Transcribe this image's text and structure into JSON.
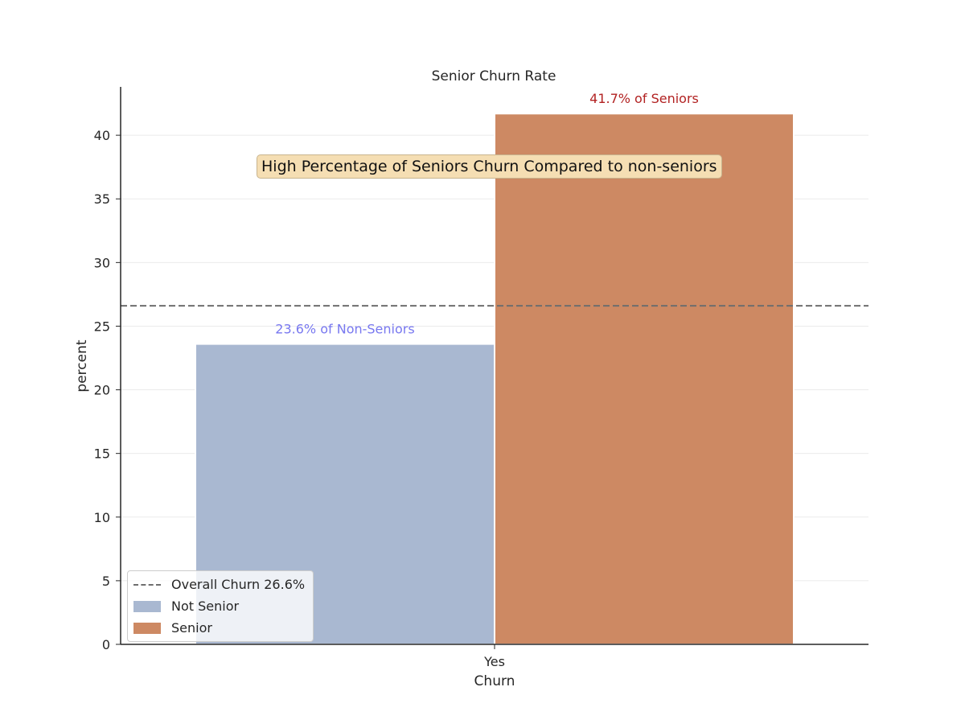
{
  "chart_data": {
    "type": "bar",
    "title": "Senior Churn Rate",
    "xlabel": "Churn",
    "ylabel": "percent",
    "categories": [
      "Yes"
    ],
    "ylim": [
      0,
      43.8
    ],
    "yticks": [
      0,
      5,
      10,
      15,
      20,
      25,
      30,
      35,
      40
    ],
    "grid": "horizontal",
    "legend_position": "lower-left",
    "series": [
      {
        "name": "Not Senior",
        "values": [
          23.6
        ],
        "color": "#a9b8d1",
        "data_label": "23.6% of Non-Seniors",
        "label_color": "#7878f0"
      },
      {
        "name": "Senior",
        "values": [
          41.7
        ],
        "color": "#cd8963",
        "data_label": "41.7% of Seniors",
        "label_color": "#b22222"
      }
    ],
    "reference_line": {
      "label": "Overall Churn 26.6%",
      "value": 26.6,
      "style": "dashed",
      "color": "#6e6e6e"
    },
    "annotation": "High Percentage of Seniors Churn Compared to non-seniors"
  }
}
